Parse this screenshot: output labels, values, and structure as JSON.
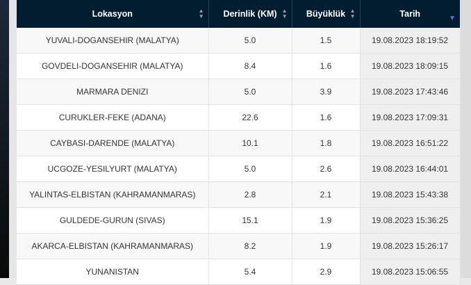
{
  "table": {
    "columns": [
      {
        "label": "Lokasyon",
        "sort": "both"
      },
      {
        "label": "Derinlik (KM)",
        "sort": "both"
      },
      {
        "label": "Büyüklük",
        "sort": "both"
      },
      {
        "label": "Tarih",
        "sort": "desc"
      }
    ],
    "rows": [
      [
        "YUVALI-DOGANSEHIR (MALATYA)",
        "5.0",
        "1.5",
        "19.08.2023 18:19:52"
      ],
      [
        "GOVDELI-DOGANSEHIR (MALATYA)",
        "8.4",
        "1.6",
        "19.08.2023 18:09:15"
      ],
      [
        "MARMARA DENIZI",
        "5.0",
        "3.9",
        "19.08.2023 17:43:46"
      ],
      [
        "CURUKLER-FEKE (ADANA)",
        "22.6",
        "1.6",
        "19.08.2023 17:09:31"
      ],
      [
        "CAYBASI-DARENDE (MALATYA)",
        "10.1",
        "1.8",
        "19.08.2023 16:51:22"
      ],
      [
        "UCGOZE-YESILYURT (MALATYA)",
        "5.0",
        "2.6",
        "19.08.2023 16:44:01"
      ],
      [
        "YALINTAS-ELBISTAN (KAHRAMANMARAS)",
        "2.8",
        "2.1",
        "19.08.2023 15:43:38"
      ],
      [
        "GULDEDE-GURUN (SIVAS)",
        "15.1",
        "1.9",
        "19.08.2023 15:36:25"
      ],
      [
        "AKARCA-ELBISTAN (KAHRAMANMARAS)",
        "8.2",
        "1.9",
        "19.08.2023 15:26:17"
      ],
      [
        "YUNANISTAN",
        "5.4",
        "2.9",
        "19.08.2023 15:06:55"
      ]
    ]
  },
  "colors": {
    "header_bg": "#031d30",
    "sort_desc_arrow": "#6a6ad8"
  }
}
